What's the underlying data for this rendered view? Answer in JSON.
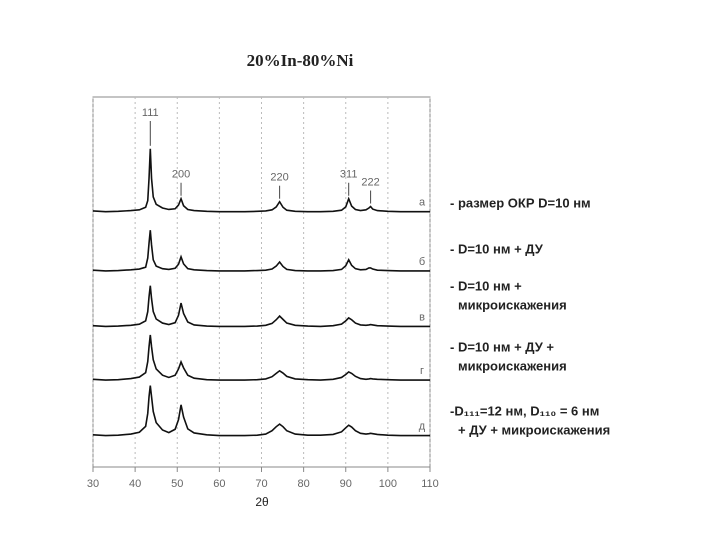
{
  "chart_data": {
    "type": "line",
    "title": "20%In-80%Ni",
    "x_label": "2θ",
    "xlim": [
      30,
      110
    ],
    "ylim": [
      0,
      100
    ],
    "xticks": [
      30,
      40,
      50,
      60,
      70,
      80,
      90,
      100,
      110
    ],
    "grid": true,
    "x": [
      30,
      33,
      36,
      39,
      41,
      42.5,
      43,
      43.3,
      43.6,
      43.9,
      44.3,
      45,
      46.5,
      48,
      49.5,
      50.3,
      50.9,
      51.5,
      52.5,
      54,
      57,
      60,
      63,
      66,
      69,
      71,
      72.5,
      73.5,
      74.3,
      75.1,
      76,
      78,
      81,
      84,
      87,
      89,
      90,
      90.7,
      91.4,
      92.3,
      93.5,
      94.8,
      95.5,
      95.9,
      96.4,
      97.5,
      100,
      103,
      106,
      110
    ],
    "series": [
      {
        "name": "а",
        "color": "#111111",
        "values": [
          69.2,
          69.0,
          69.1,
          69.3,
          69.5,
          70.2,
          72,
          78,
          86,
          78,
          73,
          71,
          70,
          69.6,
          69.8,
          70.8,
          72.5,
          70.6,
          69.6,
          69.3,
          69.1,
          69.0,
          69.0,
          69.0,
          69.1,
          69.2,
          69.5,
          70.3,
          71.7,
          70.2,
          69.4,
          69.1,
          69.0,
          69.0,
          69.1,
          69.4,
          70.3,
          72.5,
          70.5,
          69.6,
          69.3,
          69.5,
          70,
          70.4,
          69.7,
          69.3,
          69.1,
          69.0,
          69.0,
          69.0
        ]
      },
      {
        "name": "б",
        "color": "#111111",
        "values": [
          53.2,
          53.0,
          53.1,
          53.3,
          53.5,
          54,
          56.5,
          60.5,
          64,
          60,
          56,
          54.3,
          53.6,
          53.4,
          53.7,
          54.8,
          56.8,
          54.9,
          53.6,
          53.3,
          53.1,
          53.0,
          53.0,
          53.0,
          53.1,
          53.2,
          53.5,
          54.3,
          55.4,
          54.2,
          53.4,
          53.1,
          53,
          53,
          53.1,
          53.4,
          54.4,
          56,
          54.5,
          53.6,
          53.3,
          53.4,
          53.8,
          53.8,
          53.5,
          53.2,
          53.1,
          53,
          53,
          53
        ]
      },
      {
        "name": "в",
        "color": "#111111",
        "values": [
          38.2,
          38.0,
          38.1,
          38.3,
          38.6,
          39.5,
          42,
          46,
          49,
          45.5,
          42,
          40,
          38.9,
          38.5,
          39,
          41,
          44.3,
          41.5,
          39.2,
          38.4,
          38.1,
          38.0,
          38.0,
          38.0,
          38.1,
          38.3,
          38.8,
          39.8,
          40.8,
          39.9,
          38.9,
          38.3,
          38.1,
          38,
          38.2,
          38.6,
          39.5,
          40.3,
          39.8,
          38.9,
          38.4,
          38.3,
          38.4,
          38.5,
          38.4,
          38.2,
          38.1,
          38,
          38,
          38
        ]
      },
      {
        "name": "г",
        "color": "#111111",
        "values": [
          23.7,
          23.5,
          23.6,
          23.9,
          24.3,
          25.5,
          28.5,
          32.5,
          35.7,
          32.5,
          29,
          26.5,
          24.8,
          24.2,
          24.8,
          26.5,
          28.4,
          26.8,
          24.8,
          24,
          23.6,
          23.5,
          23.5,
          23.5,
          23.6,
          23.8,
          24.4,
          25.3,
          26,
          25.4,
          24.5,
          23.8,
          23.6,
          23.5,
          23.7,
          24.2,
          25,
          25.7,
          25.3,
          24.5,
          23.9,
          23.7,
          23.8,
          23.9,
          23.8,
          23.7,
          23.6,
          23.5,
          23.5,
          23.5
        ]
      },
      {
        "name": "д",
        "color": "#111111",
        "values": [
          8.7,
          8.5,
          8.6,
          8.9,
          9.4,
          11,
          14.5,
          19,
          22,
          19,
          15,
          12,
          10,
          9.3,
          10.2,
          12.8,
          16.8,
          13.5,
          10.3,
          9.2,
          8.7,
          8.5,
          8.5,
          8.5,
          8.6,
          8.9,
          9.8,
          10.9,
          11.6,
          10.9,
          9.8,
          8.9,
          8.6,
          8.6,
          8.8,
          9.5,
          10.6,
          11.3,
          10.8,
          9.8,
          9.1,
          8.9,
          9,
          9.1,
          9,
          8.8,
          8.6,
          8.5,
          8.5,
          8.5
        ]
      }
    ],
    "peak_labels": [
      {
        "label": "111",
        "x": 43.6
      },
      {
        "label": "200",
        "x": 50.9
      },
      {
        "label": "220",
        "x": 74.3
      },
      {
        "label": "311",
        "x": 90.7
      },
      {
        "label": "222",
        "x": 95.9
      }
    ],
    "annotations": [
      [
        "- размер ОКР  D=10 нм"
      ],
      [
        "- D=10 нм + ДУ"
      ],
      [
        "- D=10 нм +",
        "микроискажения"
      ],
      [
        "- D=10 нм + ДУ +",
        "микроискажения"
      ],
      [
        "-D₁₁₁=12 нм, D₁₁₀ = 6 нм",
        "+ ДУ +   микроискажения"
      ]
    ]
  }
}
